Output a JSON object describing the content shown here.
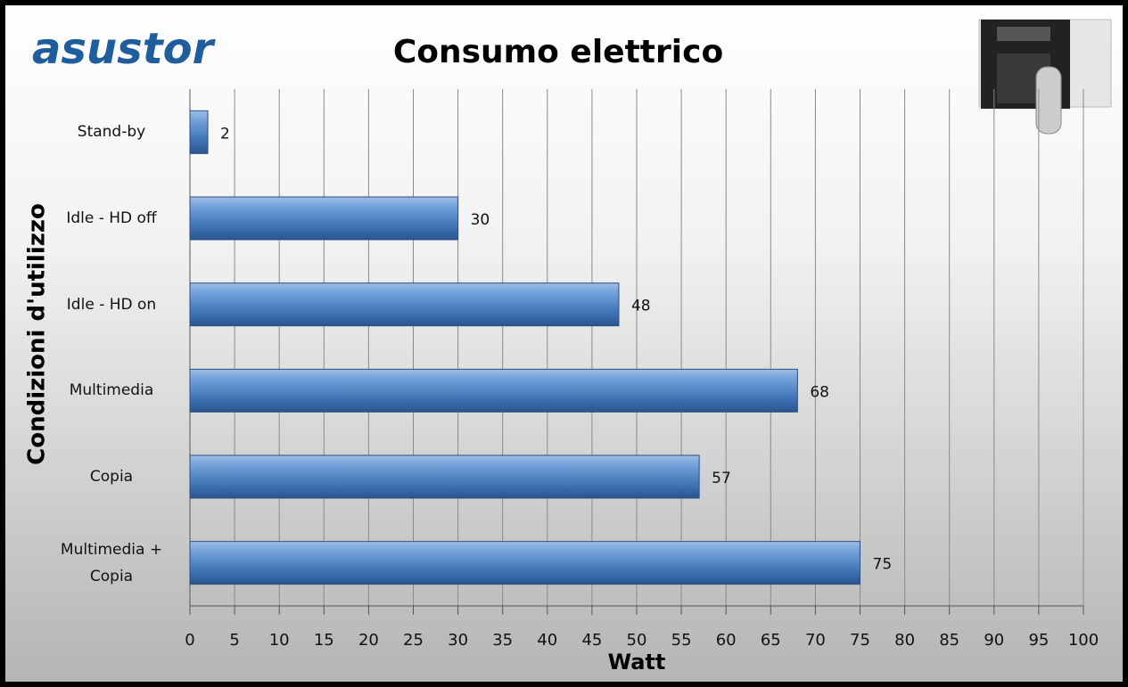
{
  "chart_data": {
    "type": "bar",
    "orientation": "horizontal",
    "logo": "asustor",
    "title": "Consumo elettrico",
    "x_label": "Watt",
    "y_label": "Condizioni d'utilizzo",
    "categories": [
      "Stand-by",
      "Idle - HD off",
      "Idle - HD on",
      "Multimedia",
      "Copia",
      "Multimedia + Copia"
    ],
    "values": [
      2,
      30,
      48,
      68,
      57,
      75
    ],
    "color": "#4a7fc0",
    "xlim": [
      0,
      100
    ],
    "xticks": [
      0,
      5,
      10,
      15,
      20,
      25,
      30,
      35,
      40,
      45,
      50,
      55,
      60,
      65,
      70,
      75,
      80,
      85,
      90,
      95,
      100
    ],
    "grid": true
  }
}
